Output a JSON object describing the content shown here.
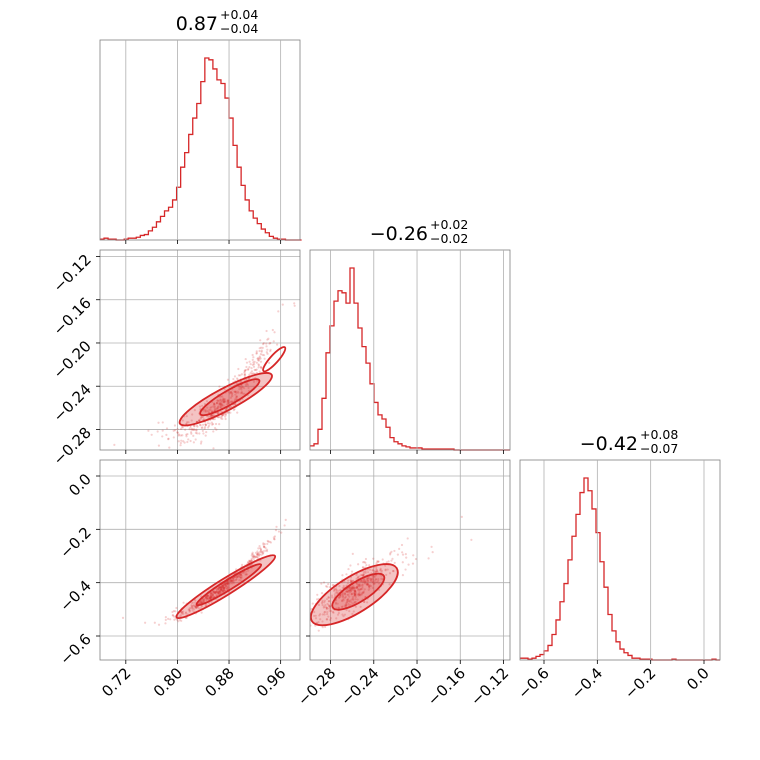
{
  "chart_data": {
    "type": "corner",
    "color": "#d62728",
    "grid": true,
    "parameters": [
      {
        "title": {
          "median": "0.87",
          "plus": "+0.04",
          "minus": "−0.04"
        },
        "range": [
          0.68,
          0.99
        ],
        "ticks": [
          {
            "v": 0.72,
            "label": "0.72"
          },
          {
            "v": 0.8,
            "label": "0.80"
          },
          {
            "v": 0.88,
            "label": "0.88"
          },
          {
            "v": 0.96,
            "label": "0.96"
          }
        ],
        "histogram": {
          "bin_start": 0.68,
          "bin_width": 0.00625,
          "counts": [
            0.5,
            1.0,
            0.5,
            0.5,
            0,
            0,
            0.5,
            1,
            1,
            1.5,
            2.5,
            3,
            5,
            7,
            10,
            13,
            16,
            18,
            22,
            29,
            40,
            48,
            58,
            67,
            75,
            87,
            100,
            99,
            94,
            88,
            86,
            78,
            67,
            52,
            40,
            30,
            22,
            16,
            12,
            9,
            6,
            4,
            2,
            1,
            0.5,
            0.5,
            0,
            0,
            0,
            0
          ]
        }
      },
      {
        "title": {
          "median": "−0.26",
          "plus": "+0.02",
          "minus": "−0.02"
        },
        "range": [
          -0.299,
          -0.114
        ],
        "ticks": [
          {
            "v": -0.28,
            "label": "−0.28"
          },
          {
            "v": -0.24,
            "label": "−0.24"
          },
          {
            "v": -0.2,
            "label": "−0.20"
          },
          {
            "v": -0.16,
            "label": "−0.16"
          },
          {
            "v": -0.12,
            "label": "−0.12"
          }
        ],
        "histogram": {
          "bin_start": -0.299,
          "bin_width": 0.0037,
          "counts": [
            2,
            3,
            10,
            25,
            47,
            60,
            72,
            77,
            76,
            71,
            88,
            71,
            59,
            50,
            42,
            32,
            23,
            17,
            15,
            11,
            6,
            4,
            3,
            2,
            1.5,
            1,
            1,
            1,
            0.5,
            0.5,
            0.5,
            0.5,
            0.5,
            0.5,
            0.5,
            0.5,
            0,
            0,
            0,
            0,
            0,
            0,
            0,
            0,
            0,
            0,
            0,
            0,
            0,
            0
          ]
        }
      },
      {
        "title": {
          "median": "−0.42",
          "plus": "+0.08",
          "minus": "−0.07"
        },
        "range": [
          -0.69,
          0.06
        ],
        "ticks": [
          {
            "v": -0.6,
            "label": "−0.6"
          },
          {
            "v": -0.4,
            "label": "−0.4"
          },
          {
            "v": -0.2,
            "label": "−0.2"
          },
          {
            "v": 0.0,
            "label": "0.0"
          }
        ],
        "histogram": {
          "bin_start": -0.69,
          "bin_width": 0.015,
          "counts": [
            1,
            1,
            0.5,
            1,
            2,
            3,
            5,
            8,
            14,
            22,
            32,
            42,
            55,
            68,
            80,
            92,
            100,
            93,
            83,
            70,
            54,
            40,
            25,
            16,
            10,
            6,
            4,
            2.5,
            1,
            1,
            0.5,
            0.5,
            0.5,
            0,
            0,
            0,
            0,
            0,
            0.5,
            0,
            0,
            0,
            0,
            0,
            0,
            0,
            0,
            0,
            0.5,
            0
          ]
        }
      }
    ],
    "pairs": [
      {
        "x": 0,
        "y": 1,
        "x_ticks": [
          0.72,
          0.8,
          0.88,
          0.96
        ],
        "y_ticks": [
          -0.28,
          -0.24,
          -0.2,
          -0.16,
          -0.12
        ],
        "y_tick_labels": [
          "−0.28",
          "−0.24",
          "−0.20",
          "−0.16",
          "−0.12"
        ]
      },
      {
        "x": 0,
        "y": 2,
        "x_ticks": [
          0.72,
          0.8,
          0.88,
          0.96
        ],
        "y_ticks": [
          -0.6,
          -0.4,
          -0.2,
          0.0
        ],
        "y_tick_labels": [
          "−0.6",
          "−0.4",
          "−0.2",
          "0.0"
        ]
      },
      {
        "x": 1,
        "y": 2,
        "x_ticks": [
          -0.28,
          -0.24,
          -0.2,
          -0.16,
          -0.12
        ],
        "y_ticks": [
          -0.6,
          -0.4,
          -0.2,
          0.0
        ],
        "y_tick_labels": []
      }
    ]
  }
}
